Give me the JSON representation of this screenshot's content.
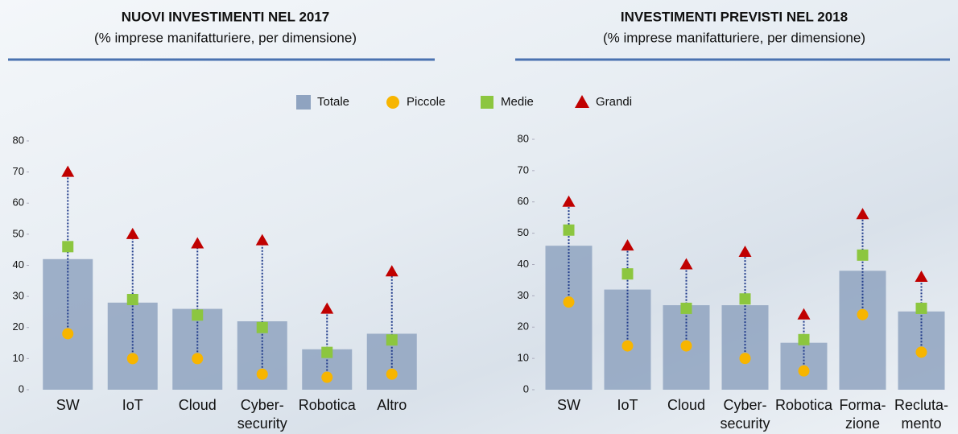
{
  "chart_data": [
    {
      "type": "bar-dot",
      "title": "NUOVI INVESTIMENTI NEL 2017",
      "subtitle": "(% imprese manifatturiere, per dimensione)",
      "categories": [
        [
          "SW"
        ],
        [
          "IoT"
        ],
        [
          "Cloud"
        ],
        [
          "Cyber-",
          "security"
        ],
        [
          "Robotica"
        ],
        [
          "Altro"
        ]
      ],
      "series": [
        {
          "name": "Totale",
          "color": "#8fa3c0",
          "values": [
            42,
            28,
            26,
            22,
            13,
            18
          ]
        },
        {
          "name": "Piccole",
          "color": "#f7b500",
          "values": [
            18,
            10,
            10,
            5,
            4,
            5
          ]
        },
        {
          "name": "Medie",
          "color": "#8cc63f",
          "values": [
            46,
            29,
            24,
            20,
            12,
            16
          ]
        },
        {
          "name": "Grandi",
          "color": "#c00000",
          "values": [
            70,
            50,
            47,
            48,
            26,
            38
          ]
        }
      ],
      "ylim": [
        0,
        80
      ],
      "yticks": [
        0,
        10,
        20,
        30,
        40,
        50,
        60,
        70,
        80
      ]
    },
    {
      "type": "bar-dot",
      "title": "INVESTIMENTI PREVISTI NEL 2018",
      "subtitle": "(% imprese manifatturiere, per dimensione)",
      "categories": [
        [
          "SW"
        ],
        [
          "IoT"
        ],
        [
          "Cloud"
        ],
        [
          "Cyber-",
          "security"
        ],
        [
          "Robotica"
        ],
        [
          "Forma-",
          "zione"
        ],
        [
          "Recluta-",
          "mento"
        ]
      ],
      "series": [
        {
          "name": "Totale",
          "color": "#8fa3c0",
          "values": [
            46,
            32,
            27,
            27,
            15,
            38,
            25
          ]
        },
        {
          "name": "Piccole",
          "color": "#f7b500",
          "values": [
            28,
            14,
            14,
            10,
            6,
            24,
            12
          ]
        },
        {
          "name": "Medie",
          "color": "#8cc63f",
          "values": [
            51,
            37,
            26,
            29,
            16,
            43,
            26
          ]
        },
        {
          "name": "Grandi",
          "color": "#c00000",
          "values": [
            60,
            46,
            40,
            44,
            24,
            56,
            36
          ]
        }
      ],
      "ylim": [
        0,
        80
      ],
      "yticks": [
        0,
        10,
        20,
        30,
        40,
        50,
        60,
        70,
        80
      ]
    }
  ]
}
